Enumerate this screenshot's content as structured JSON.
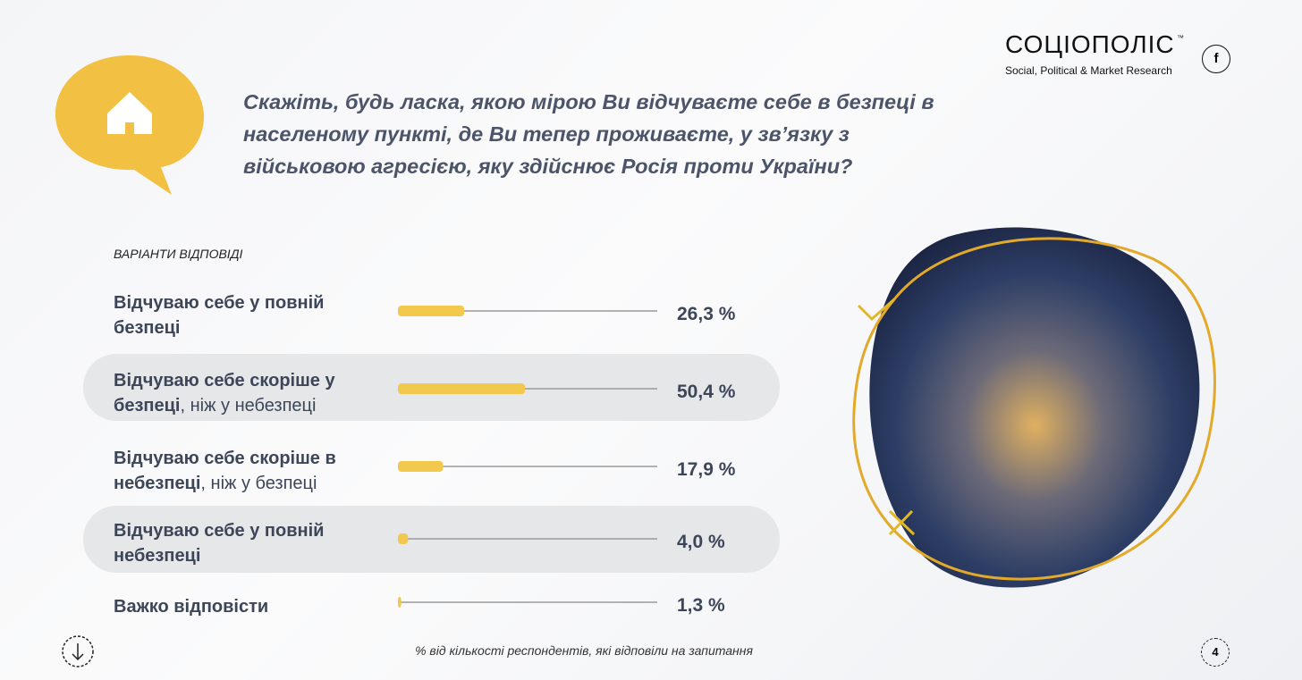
{
  "page": {
    "brand": "СОЦІОПОЛІС",
    "trademark": "™",
    "tagline": "Social, Political & Market Research",
    "social": "f",
    "page_number": "4"
  },
  "chart_data": {
    "type": "hbar",
    "title": "Скажіть, будь ласка, якою мірою Ви відчуваєте себе в безпеці в населеному пункті, де Ви тепер проживаєте, у зв’язку з військовою агресією, яку здійснює Росія проти України?",
    "subtitle": "ВАРІАНТИ ВІДПОВІДІ",
    "categories": [
      "Відчуваю себе у повній безпеці",
      "Відчуваю себе скоріше у безпеці, ніж у небезпеці",
      "Відчуваю себе скоріше в небезпеці, ніж у безпеці",
      "Відчуваю себе у повній небезпеці",
      "Важко відповісти"
    ],
    "values": [
      26.3,
      50.4,
      17.9,
      4.0,
      1.3
    ],
    "value_labels": [
      "26,3 %",
      "50,4 %",
      "17,9 %",
      "4,0 %",
      "1,3 %"
    ],
    "color": "#f2c94c",
    "xlim": [
      0,
      100
    ],
    "note": "% від кількості респондентів, які відповіли на запитання"
  }
}
